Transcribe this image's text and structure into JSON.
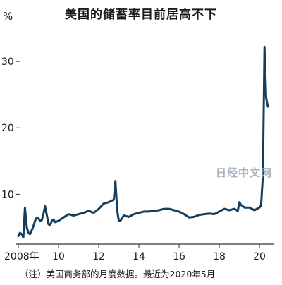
{
  "title": "美国的储蓄率目前居高不下",
  "note": "（注）美国商务部的月度数据。最近为2020年5月",
  "watermark": "日经中文网",
  "colors": {
    "line": "#153e5c",
    "axis": "#333333",
    "tick": "#333333"
  },
  "chart_data": {
    "type": "line",
    "title": "美国的储蓄率目前居高不下",
    "ylabel": "%",
    "xlim": [
      2008.0,
      2020.7
    ],
    "ylim": [
      2.5,
      35
    ],
    "y_ticks": [
      10,
      20,
      30
    ],
    "x_ticks": [
      {
        "value": 2008,
        "label": "2008年"
      },
      {
        "value": 2010,
        "label": "10"
      },
      {
        "value": 2012,
        "label": "12"
      },
      {
        "value": 2014,
        "label": "14"
      },
      {
        "value": 2016,
        "label": "16"
      },
      {
        "value": 2018,
        "label": "18"
      },
      {
        "value": 2020,
        "label": "20"
      }
    ],
    "series": [
      {
        "x": [
          2008.0,
          2008.08,
          2008.17,
          2008.25,
          2008.33,
          2008.42,
          2008.5,
          2008.58,
          2008.67,
          2008.75,
          2008.83,
          2008.92,
          2009.0,
          2009.08,
          2009.17,
          2009.25,
          2009.33,
          2009.42,
          2009.5,
          2009.58,
          2009.67,
          2009.75,
          2009.83,
          2009.92,
          2010.0,
          2010.25,
          2010.5,
          2010.75,
          2011.0,
          2011.25,
          2011.5,
          2011.75,
          2012.0,
          2012.25,
          2012.5,
          2012.75,
          2012.83,
          2012.92,
          2013.0,
          2013.08,
          2013.25,
          2013.5,
          2013.75,
          2014.0,
          2014.25,
          2014.5,
          2014.75,
          2015.0,
          2015.25,
          2015.5,
          2015.75,
          2016.0,
          2016.25,
          2016.5,
          2016.75,
          2017.0,
          2017.25,
          2017.5,
          2017.75,
          2018.0,
          2018.25,
          2018.5,
          2018.75,
          2018.92,
          2019.0,
          2019.08,
          2019.25,
          2019.5,
          2019.75,
          2020.0,
          2020.08,
          2020.17,
          2020.25,
          2020.33,
          2020.42
        ],
        "values": [
          3.7,
          4.2,
          4.0,
          3.5,
          8.0,
          5.0,
          4.2,
          4.0,
          4.6,
          5.2,
          6.0,
          6.5,
          6.4,
          6.0,
          6.1,
          7.0,
          8.2,
          6.8,
          5.5,
          5.4,
          6.0,
          6.2,
          5.8,
          5.9,
          6.0,
          6.5,
          7.0,
          6.8,
          7.0,
          7.2,
          7.5,
          7.2,
          7.8,
          8.6,
          8.8,
          9.2,
          12.0,
          7.6,
          6.0,
          6.0,
          6.8,
          6.6,
          7.0,
          7.2,
          7.4,
          7.4,
          7.5,
          7.6,
          7.8,
          7.8,
          7.6,
          7.4,
          7.0,
          6.5,
          6.6,
          6.9,
          7.0,
          7.1,
          7.0,
          7.4,
          7.8,
          7.6,
          7.8,
          7.5,
          8.8,
          8.4,
          8.0,
          8.0,
          7.6,
          8.0,
          8.3,
          12.8,
          32.2,
          24.5,
          23.2
        ]
      }
    ]
  }
}
